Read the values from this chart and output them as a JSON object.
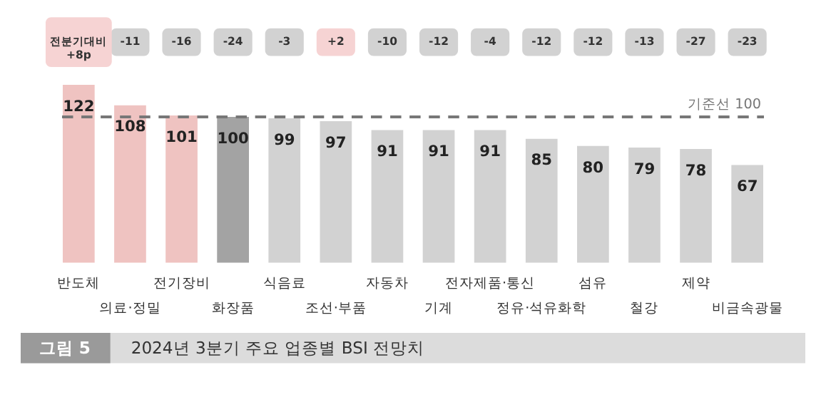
{
  "chart_data": {
    "type": "bar",
    "title": "2024년 3분기 주요 업종별 BSI 전망치",
    "categories": [
      "반도체",
      "의료·정밀",
      "전기장비",
      "화장품",
      "식음료",
      "조선·부품",
      "자동차",
      "기계",
      "전자제품·통신",
      "정유·석유화학",
      "섬유",
      "철강",
      "제약",
      "비금속광물"
    ],
    "values": [
      122,
      108,
      101,
      100,
      99,
      97,
      91,
      91,
      91,
      85,
      80,
      79,
      78,
      67
    ],
    "colors": [
      "#efc3c1",
      "#efc3c1",
      "#efc3c1",
      "#a3a3a3",
      "#d2d2d2",
      "#d2d2d2",
      "#d2d2d2",
      "#d2d2d2",
      "#d2d2d2",
      "#d2d2d2",
      "#d2d2d2",
      "#d2d2d2",
      "#d2d2d2",
      "#d2d2d2"
    ],
    "data_labels": true,
    "tick_labels": "x",
    "ref_lines": [
      {
        "axis": "y",
        "value": 100,
        "label": "기준선 100",
        "color": "#777777",
        "line_style": "dashed"
      }
    ],
    "annotations": [
      "전분기대비\n+8p",
      "-11",
      "-16",
      "-24",
      "-3",
      "+2",
      "-10",
      "-12",
      "-4",
      "-12",
      "-12",
      "-13",
      "-27",
      "-23",
      "그림 5"
    ]
  }
}
